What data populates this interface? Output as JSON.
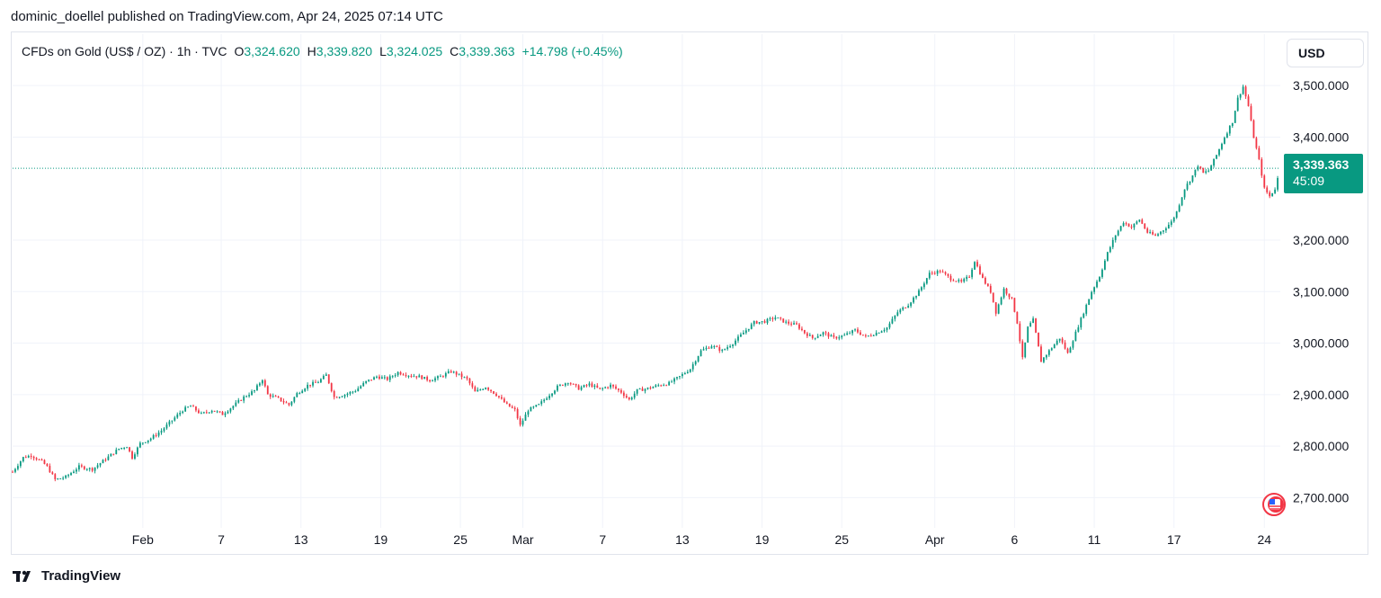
{
  "header": {
    "published": "dominic_doellel published on TradingView.com, Apr 24, 2025 07:14 UTC"
  },
  "legend": {
    "symbol": "CFDs on Gold (US$ / OZ) · 1h · TVC",
    "open_label": "O",
    "open": "3,324.620",
    "high_label": "H",
    "high": "3,339.820",
    "low_label": "L",
    "low": "3,324.025",
    "close_label": "C",
    "close": "3,339.363",
    "change": "+14.798 (+0.45%)"
  },
  "currency_button": "USD",
  "price_tag": {
    "price": "3,339.363",
    "countdown": "45:09"
  },
  "footer": {
    "brand": "TradingView"
  },
  "colors": {
    "up": "#089981",
    "down": "#f23645",
    "grid": "#f0f3fa",
    "text": "#131722"
  },
  "chart_data": {
    "type": "candlestick",
    "y_range": [
      2650,
      3530
    ],
    "y_ticks": [
      {
        "value": 3500,
        "label": "3,500.000"
      },
      {
        "value": 3400,
        "label": "3,400.000"
      },
      {
        "value": 3200,
        "label": "3,200.000"
      },
      {
        "value": 3100,
        "label": "3,100.000"
      },
      {
        "value": 3000,
        "label": "3,000.000"
      },
      {
        "value": 2900,
        "label": "2,900.000"
      },
      {
        "value": 2800,
        "label": "2,800.000"
      },
      {
        "value": 2700,
        "label": "2,700.000"
      }
    ],
    "x_ticks": [
      {
        "t": 18.4,
        "label": "Feb"
      },
      {
        "t": 24.3,
        "label": "7"
      },
      {
        "t": 30.3,
        "label": "13"
      },
      {
        "t": 36.3,
        "label": "19"
      },
      {
        "t": 42.3,
        "label": "25"
      },
      {
        "t": 47.0,
        "label": "Mar"
      },
      {
        "t": 53.0,
        "label": "7"
      },
      {
        "t": 59.0,
        "label": "13"
      },
      {
        "t": 65.0,
        "label": "19"
      },
      {
        "t": 71.0,
        "label": "25"
      },
      {
        "t": 78.0,
        "label": "Apr"
      },
      {
        "t": 84.0,
        "label": "6"
      },
      {
        "t": 90.0,
        "label": "11"
      },
      {
        "t": 96.0,
        "label": "17"
      },
      {
        "t": 102.8,
        "label": "24"
      }
    ],
    "t_range": [
      8.6,
      104.0
    ],
    "last_price": 3339.363,
    "path": [
      [
        8.6,
        2750
      ],
      [
        9.4,
        2778
      ],
      [
        10.0,
        2782
      ],
      [
        10.8,
        2770
      ],
      [
        11.2,
        2760
      ],
      [
        11.8,
        2735
      ],
      [
        12.6,
        2740
      ],
      [
        13.6,
        2760
      ],
      [
        14.6,
        2755
      ],
      [
        15.6,
        2775
      ],
      [
        16.6,
        2795
      ],
      [
        17.2,
        2800
      ],
      [
        17.6,
        2778
      ],
      [
        18.2,
        2805
      ],
      [
        19.0,
        2815
      ],
      [
        19.8,
        2830
      ],
      [
        20.6,
        2850
      ],
      [
        21.4,
        2870
      ],
      [
        22.0,
        2878
      ],
      [
        22.8,
        2862
      ],
      [
        23.6,
        2870
      ],
      [
        24.4,
        2862
      ],
      [
        25.2,
        2878
      ],
      [
        26.0,
        2895
      ],
      [
        26.8,
        2908
      ],
      [
        27.4,
        2930
      ],
      [
        27.8,
        2900
      ],
      [
        28.6,
        2892
      ],
      [
        29.4,
        2880
      ],
      [
        30.0,
        2902
      ],
      [
        30.8,
        2918
      ],
      [
        31.6,
        2925
      ],
      [
        32.2,
        2938
      ],
      [
        32.8,
        2895
      ],
      [
        33.6,
        2900
      ],
      [
        34.4,
        2908
      ],
      [
        35.2,
        2925
      ],
      [
        36.0,
        2935
      ],
      [
        36.8,
        2930
      ],
      [
        37.6,
        2943
      ],
      [
        38.4,
        2938
      ],
      [
        39.2,
        2935
      ],
      [
        40.0,
        2928
      ],
      [
        40.8,
        2935
      ],
      [
        41.6,
        2945
      ],
      [
        42.2,
        2938
      ],
      [
        42.8,
        2930
      ],
      [
        43.4,
        2905
      ],
      [
        44.2,
        2915
      ],
      [
        45.0,
        2900
      ],
      [
        45.8,
        2880
      ],
      [
        46.4,
        2870
      ],
      [
        46.8,
        2840
      ],
      [
        47.4,
        2870
      ],
      [
        48.2,
        2880
      ],
      [
        49.0,
        2900
      ],
      [
        49.6,
        2915
      ],
      [
        50.4,
        2925
      ],
      [
        51.2,
        2912
      ],
      [
        52.0,
        2920
      ],
      [
        52.8,
        2910
      ],
      [
        53.6,
        2918
      ],
      [
        54.4,
        2905
      ],
      [
        55.0,
        2890
      ],
      [
        55.6,
        2908
      ],
      [
        56.4,
        2912
      ],
      [
        57.2,
        2918
      ],
      [
        58.0,
        2922
      ],
      [
        58.8,
        2935
      ],
      [
        59.6,
        2950
      ],
      [
        60.4,
        2985
      ],
      [
        61.2,
        2995
      ],
      [
        62.0,
        2985
      ],
      [
        62.8,
        3000
      ],
      [
        63.6,
        3020
      ],
      [
        64.4,
        3040
      ],
      [
        65.2,
        3042
      ],
      [
        66.0,
        3050
      ],
      [
        66.8,
        3040
      ],
      [
        67.6,
        3035
      ],
      [
        68.2,
        3020
      ],
      [
        68.8,
        3010
      ],
      [
        69.6,
        3020
      ],
      [
        70.4,
        3010
      ],
      [
        71.2,
        3015
      ],
      [
        72.0,
        3025
      ],
      [
        72.8,
        3012
      ],
      [
        73.6,
        3020
      ],
      [
        74.4,
        3030
      ],
      [
        75.2,
        3060
      ],
      [
        76.0,
        3075
      ],
      [
        76.8,
        3100
      ],
      [
        77.6,
        3135
      ],
      [
        78.4,
        3140
      ],
      [
        79.2,
        3125
      ],
      [
        80.0,
        3118
      ],
      [
        80.6,
        3130
      ],
      [
        81.0,
        3160
      ],
      [
        81.6,
        3125
      ],
      [
        82.2,
        3100
      ],
      [
        82.6,
        3060
      ],
      [
        83.2,
        3105
      ],
      [
        83.8,
        3085
      ],
      [
        84.2,
        3040
      ],
      [
        84.6,
        2970
      ],
      [
        85.0,
        3030
      ],
      [
        85.4,
        3045
      ],
      [
        86.0,
        2965
      ],
      [
        86.6,
        2985
      ],
      [
        87.4,
        3010
      ],
      [
        88.0,
        2980
      ],
      [
        88.6,
        3020
      ],
      [
        89.2,
        3060
      ],
      [
        89.8,
        3100
      ],
      [
        90.4,
        3130
      ],
      [
        91.0,
        3175
      ],
      [
        91.6,
        3210
      ],
      [
        92.2,
        3235
      ],
      [
        92.8,
        3225
      ],
      [
        93.4,
        3240
      ],
      [
        94.0,
        3215
      ],
      [
        94.6,
        3208
      ],
      [
        95.2,
        3220
      ],
      [
        95.8,
        3235
      ],
      [
        96.2,
        3255
      ],
      [
        96.8,
        3300
      ],
      [
        97.4,
        3325
      ],
      [
        97.8,
        3345
      ],
      [
        98.2,
        3330
      ],
      [
        98.6,
        3335
      ],
      [
        99.2,
        3365
      ],
      [
        99.8,
        3400
      ],
      [
        100.4,
        3430
      ],
      [
        100.8,
        3475
      ],
      [
        101.2,
        3498
      ],
      [
        101.6,
        3460
      ],
      [
        102.0,
        3400
      ],
      [
        102.4,
        3355
      ],
      [
        102.8,
        3300
      ],
      [
        103.2,
        3285
      ],
      [
        103.6,
        3300
      ],
      [
        104.0,
        3339
      ]
    ]
  }
}
